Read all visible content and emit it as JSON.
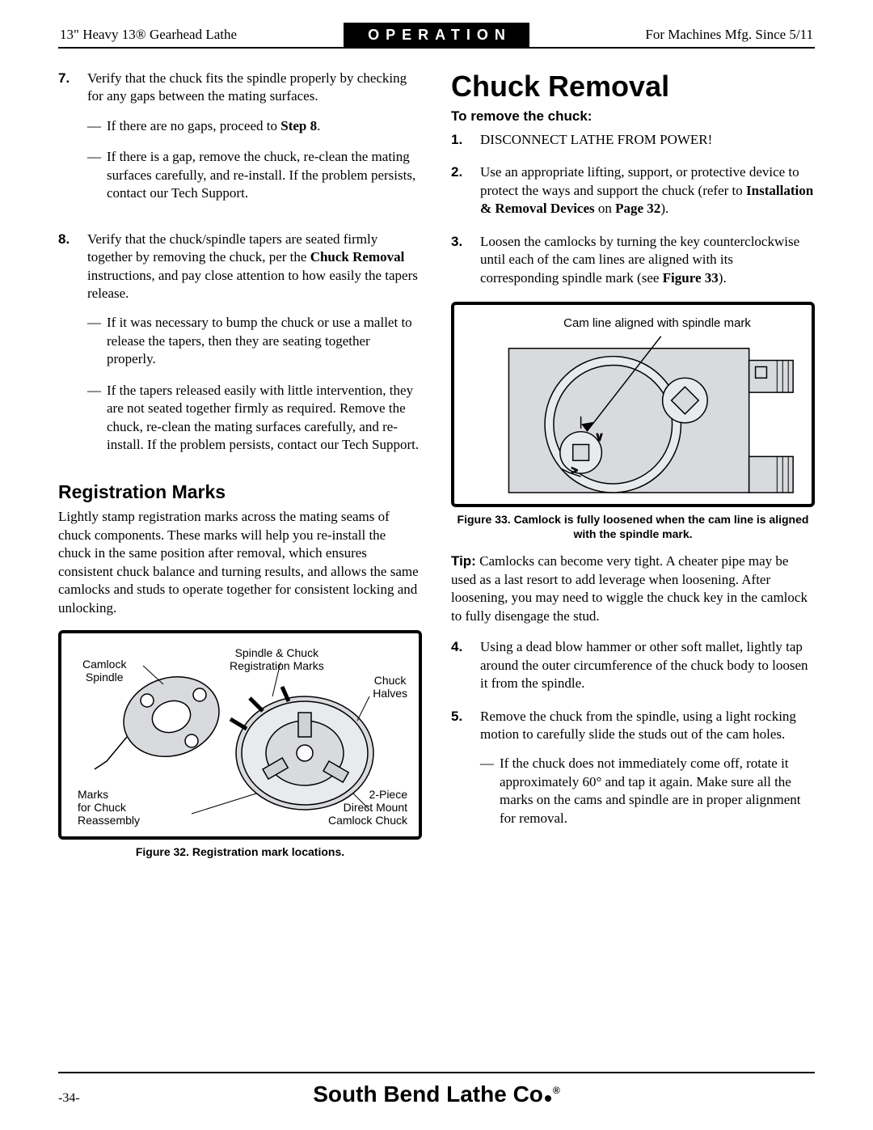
{
  "header": {
    "left": "13\" Heavy 13® Gearhead Lathe",
    "center": "OPERATION",
    "right": "For Machines Mfg. Since 5/11"
  },
  "left_col": {
    "step7": {
      "num": "7.",
      "text_a": "Verify that the chuck fits the spindle properly by checking for any gaps between the mating surfaces.",
      "dash1_pre": "If there are no gaps, proceed to ",
      "dash1_bold": "Step 8",
      "dash1_post": ".",
      "dash2": "If there is a gap, remove the chuck, re-clean the mating surfaces carefully, and re-install. If the problem persists, contact our Tech Support."
    },
    "step8": {
      "num": "8.",
      "text_pre": "Verify that the chuck/spindle tapers are seated firmly together by removing the chuck, per the ",
      "text_bold": "Chuck Removal",
      "text_post": " instructions, and pay close attention to how easily the tapers release.",
      "dash1": "If it was necessary to bump the chuck or use a mallet to release the tapers, then they are seating together properly.",
      "dash2": "If the tapers released easily with little intervention, they are not seated together firmly as required. Remove the chuck, re-clean the mating surfaces carefully, and re-install. If the problem persists, contact our Tech Support."
    },
    "reg_marks_title": "Registration Marks",
    "reg_marks_body": "Lightly stamp registration marks across the mating seams of chuck components. These marks will help you re-install the chuck in the same position after removal, which ensures consistent chuck balance and turning results, and allows the same camlocks and studs to operate together for consistent locking and unlocking.",
    "fig32": {
      "caption": "Figure 32. Registration mark locations.",
      "lbl_camlock_spindle": "Camlock\nSpindle",
      "lbl_spindle_chuck_marks": "Spindle & Chuck\nRegistration Marks",
      "lbl_chuck_halves": "Chuck\nHalves",
      "lbl_marks_reassembly": "Marks\nfor Chuck\nReassembly",
      "lbl_direct_mount": "2-Piece\nDirect Mount\nCamlock Chuck"
    }
  },
  "right_col": {
    "title": "Chuck Removal",
    "lead": "To remove the chuck:",
    "step1": {
      "num": "1.",
      "text": "DISCONNECT LATHE FROM POWER!"
    },
    "step2": {
      "num": "2.",
      "text_pre": "Use an appropriate lifting, support, or protective device to protect the ways and support the chuck (refer to ",
      "text_bold": "Installation & Removal Devices",
      "text_mid": " on ",
      "text_bold2": "Page 32",
      "text_post": ")."
    },
    "step3": {
      "num": "3.",
      "text_pre": "Loosen the camlocks by turning the key counterclockwise until each of the cam lines are aligned with its corresponding spindle mark (see ",
      "text_bold": "Figure 33",
      "text_post": ")."
    },
    "fig33": {
      "label": "Cam line aligned with spindle mark",
      "caption": "Figure 33. Camlock is fully loosened when the cam line is aligned with the spindle mark."
    },
    "tip_label": "Tip:",
    "tip_body": " Camlocks can become very tight. A cheater pipe may be used as a last resort to add leverage when loosening. After loosening, you may need to wiggle the chuck key in the camlock to fully disengage the stud.",
    "step4": {
      "num": "4.",
      "text": "Using a dead blow hammer or other soft mallet, lightly tap around the outer circumference of the chuck body to loosen it from the spindle."
    },
    "step5": {
      "num": "5.",
      "text": "Remove the chuck from the spindle, using a light rocking motion to carefully slide the studs out of the cam holes.",
      "dash1": "If the chuck does not immediately come off, rotate it approximately 60° and tap it again. Make sure all the marks on the cams and spindle are in proper alignment for removal."
    }
  },
  "footer": {
    "page": "-34-",
    "brand": "South Bend Lathe Co"
  },
  "colors": {
    "fig_fill": "#d8dadd",
    "fig_stroke": "#000000"
  }
}
